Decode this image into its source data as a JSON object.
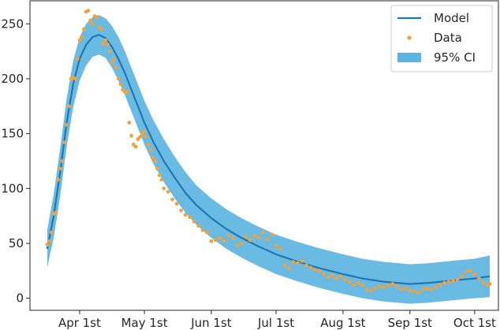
{
  "chart_data": {
    "type": "line",
    "title": "",
    "xlabel": "",
    "ylabel": "",
    "x_unit": "date",
    "xlim": [
      "2020-03-09",
      "2020-10-12"
    ],
    "ylim": [
      -11,
      271
    ],
    "grid": false,
    "legend_placement": "top-right",
    "x_ticks": [
      {
        "value": "2020-04-01",
        "label": "Apr 1st"
      },
      {
        "value": "2020-05-01",
        "label": "May 1st"
      },
      {
        "value": "2020-06-01",
        "label": "Jun 1st"
      },
      {
        "value": "2020-07-01",
        "label": "Jul 1st"
      },
      {
        "value": "2020-08-01",
        "label": "Aug 1st"
      },
      {
        "value": "2020-09-01",
        "label": "Sep 1st"
      },
      {
        "value": "2020-10-01",
        "label": "Oct 1st"
      }
    ],
    "y_ticks": [
      0,
      50,
      100,
      150,
      200,
      250
    ],
    "legend": [
      {
        "label": "Model",
        "kind": "line",
        "color": "#1f77b4"
      },
      {
        "label": "Data",
        "kind": "marker",
        "color": "#f0a23e"
      },
      {
        "label": "95% CI",
        "kind": "patch",
        "color": "#5ab4e0"
      }
    ],
    "series": [
      {
        "name": "Model",
        "kind": "line",
        "color": "#1f77b4",
        "points": [
          [
            "2020-03-17",
            45
          ],
          [
            "2020-03-20",
            75
          ],
          [
            "2020-03-23",
            115
          ],
          [
            "2020-03-26",
            160
          ],
          [
            "2020-03-29",
            195
          ],
          [
            "2020-04-01",
            218
          ],
          [
            "2020-04-04",
            231
          ],
          [
            "2020-04-07",
            238
          ],
          [
            "2020-04-10",
            240
          ],
          [
            "2020-04-13",
            237
          ],
          [
            "2020-04-16",
            229
          ],
          [
            "2020-04-19",
            218
          ],
          [
            "2020-04-22",
            205
          ],
          [
            "2020-04-25",
            190
          ],
          [
            "2020-04-28",
            175
          ],
          [
            "2020-05-01",
            160
          ],
          [
            "2020-05-05",
            143
          ],
          [
            "2020-05-10",
            125
          ],
          [
            "2020-05-15",
            110
          ],
          [
            "2020-05-20",
            96
          ],
          [
            "2020-05-25",
            85
          ],
          [
            "2020-06-01",
            73
          ],
          [
            "2020-06-08",
            63
          ],
          [
            "2020-06-15",
            55
          ],
          [
            "2020-06-22",
            48
          ],
          [
            "2020-07-01",
            40
          ],
          [
            "2020-07-10",
            34
          ],
          [
            "2020-07-20",
            28
          ],
          [
            "2020-08-01",
            22
          ],
          [
            "2020-08-10",
            18
          ],
          [
            "2020-08-20",
            15
          ],
          [
            "2020-09-01",
            13
          ],
          [
            "2020-09-10",
            14
          ],
          [
            "2020-09-20",
            16
          ],
          [
            "2020-10-01",
            18
          ],
          [
            "2020-10-08",
            20
          ]
        ]
      },
      {
        "name": "95% CI",
        "kind": "band",
        "color": "#5ab4e0",
        "x": [
          "2020-03-17",
          "2020-03-20",
          "2020-03-23",
          "2020-03-26",
          "2020-03-29",
          "2020-04-01",
          "2020-04-04",
          "2020-04-07",
          "2020-04-10",
          "2020-04-13",
          "2020-04-16",
          "2020-04-19",
          "2020-04-22",
          "2020-04-25",
          "2020-04-28",
          "2020-05-01",
          "2020-05-05",
          "2020-05-10",
          "2020-05-15",
          "2020-05-20",
          "2020-05-25",
          "2020-06-01",
          "2020-06-08",
          "2020-06-15",
          "2020-06-22",
          "2020-07-01",
          "2020-07-10",
          "2020-07-20",
          "2020-08-01",
          "2020-08-10",
          "2020-08-20",
          "2020-09-01",
          "2020-09-10",
          "2020-09-20",
          "2020-10-01",
          "2020-10-08"
        ],
        "lower": [
          28,
          55,
          93,
          138,
          174,
          198,
          212,
          220,
          222,
          219,
          210,
          198,
          185,
          170,
          155,
          140,
          123,
          106,
          91,
          78,
          67,
          55,
          45,
          37,
          30,
          22,
          16,
          10,
          4,
          0,
          -3,
          -5,
          -4,
          -2,
          0,
          1
        ],
        "upper": [
          62,
          95,
          137,
          182,
          216,
          238,
          250,
          256,
          258,
          255,
          248,
          238,
          225,
          210,
          195,
          180,
          163,
          145,
          129,
          115,
          103,
          91,
          81,
          73,
          66,
          58,
          52,
          46,
          40,
          36,
          33,
          31,
          32,
          34,
          36,
          39
        ]
      },
      {
        "name": "Data",
        "kind": "scatter",
        "color": "#f0a23e",
        "points": [
          [
            "2020-03-17",
            49
          ],
          [
            "2020-03-18",
            52
          ],
          [
            "2020-03-19",
            60
          ],
          [
            "2020-03-20",
            77
          ],
          [
            "2020-03-21",
            78
          ],
          [
            "2020-03-22",
            108
          ],
          [
            "2020-03-23",
            118
          ],
          [
            "2020-03-24",
            125
          ],
          [
            "2020-03-25",
            142
          ],
          [
            "2020-03-26",
            158
          ],
          [
            "2020-03-27",
            175
          ],
          [
            "2020-03-28",
            200
          ],
          [
            "2020-03-29",
            201
          ],
          [
            "2020-03-30",
            200
          ],
          [
            "2020-03-31",
            218
          ],
          [
            "2020-04-01",
            235
          ],
          [
            "2020-04-02",
            238
          ],
          [
            "2020-04-03",
            245
          ],
          [
            "2020-04-04",
            261
          ],
          [
            "2020-04-05",
            262
          ],
          [
            "2020-04-06",
            253
          ],
          [
            "2020-04-07",
            250
          ],
          [
            "2020-04-08",
            257
          ],
          [
            "2020-04-09",
            256
          ],
          [
            "2020-04-10",
            247
          ],
          [
            "2020-04-11",
            245
          ],
          [
            "2020-04-12",
            232
          ],
          [
            "2020-04-13",
            235
          ],
          [
            "2020-04-14",
            231
          ],
          [
            "2020-04-15",
            225
          ],
          [
            "2020-04-16",
            215
          ],
          [
            "2020-04-17",
            218
          ],
          [
            "2020-04-18",
            210
          ],
          [
            "2020-04-19",
            200
          ],
          [
            "2020-04-20",
            195
          ],
          [
            "2020-04-21",
            190
          ],
          [
            "2020-04-22",
            188
          ],
          [
            "2020-04-23",
            188
          ],
          [
            "2020-04-24",
            160
          ],
          [
            "2020-04-25",
            148
          ],
          [
            "2020-04-26",
            140
          ],
          [
            "2020-04-27",
            138
          ],
          [
            "2020-04-28",
            145
          ],
          [
            "2020-04-29",
            147
          ],
          [
            "2020-04-30",
            150
          ],
          [
            "2020-05-01",
            152
          ],
          [
            "2020-05-02",
            147
          ],
          [
            "2020-05-03",
            140
          ],
          [
            "2020-05-04",
            135
          ],
          [
            "2020-05-05",
            128
          ],
          [
            "2020-05-06",
            125
          ],
          [
            "2020-05-07",
            118
          ],
          [
            "2020-05-08",
            112
          ],
          [
            "2020-05-09",
            108
          ],
          [
            "2020-05-10",
            100
          ],
          [
            "2020-05-12",
            97
          ],
          [
            "2020-05-14",
            90
          ],
          [
            "2020-05-16",
            86
          ],
          [
            "2020-05-18",
            80
          ],
          [
            "2020-05-20",
            76
          ],
          [
            "2020-05-22",
            74
          ],
          [
            "2020-05-24",
            70
          ],
          [
            "2020-05-26",
            66
          ],
          [
            "2020-05-28",
            62
          ],
          [
            "2020-05-30",
            60
          ],
          [
            "2020-06-01",
            52
          ],
          [
            "2020-06-03",
            53
          ],
          [
            "2020-06-05",
            55
          ],
          [
            "2020-06-07",
            52
          ],
          [
            "2020-06-09",
            57
          ],
          [
            "2020-06-11",
            55
          ],
          [
            "2020-06-13",
            48
          ],
          [
            "2020-06-15",
            50
          ],
          [
            "2020-06-17",
            56
          ],
          [
            "2020-06-19",
            53
          ],
          [
            "2020-06-21",
            57
          ],
          [
            "2020-06-23",
            55
          ],
          [
            "2020-06-25",
            60
          ],
          [
            "2020-06-27",
            54
          ],
          [
            "2020-06-29",
            58
          ],
          [
            "2020-07-01",
            48
          ],
          [
            "2020-07-03",
            45
          ],
          [
            "2020-07-05",
            30
          ],
          [
            "2020-07-07",
            27
          ],
          [
            "2020-07-09",
            33
          ],
          [
            "2020-07-11",
            32
          ],
          [
            "2020-07-13",
            34
          ],
          [
            "2020-07-15",
            30
          ],
          [
            "2020-07-17",
            28
          ],
          [
            "2020-07-19",
            26
          ],
          [
            "2020-07-21",
            25
          ],
          [
            "2020-07-23",
            22
          ],
          [
            "2020-07-25",
            19
          ],
          [
            "2020-07-27",
            21
          ],
          [
            "2020-07-29",
            18
          ],
          [
            "2020-07-31",
            20
          ],
          [
            "2020-08-02",
            17
          ],
          [
            "2020-08-04",
            15
          ],
          [
            "2020-08-06",
            12
          ],
          [
            "2020-08-08",
            14
          ],
          [
            "2020-08-10",
            12
          ],
          [
            "2020-08-12",
            8
          ],
          [
            "2020-08-14",
            7
          ],
          [
            "2020-08-16",
            9
          ],
          [
            "2020-08-18",
            11
          ],
          [
            "2020-08-20",
            10
          ],
          [
            "2020-08-22",
            12
          ],
          [
            "2020-08-24",
            13
          ],
          [
            "2020-08-26",
            11
          ],
          [
            "2020-08-28",
            8
          ],
          [
            "2020-08-30",
            9
          ],
          [
            "2020-09-01",
            7
          ],
          [
            "2020-09-03",
            6
          ],
          [
            "2020-09-05",
            5
          ],
          [
            "2020-09-07",
            8
          ],
          [
            "2020-09-09",
            9
          ],
          [
            "2020-09-11",
            8
          ],
          [
            "2020-09-13",
            10
          ],
          [
            "2020-09-15",
            12
          ],
          [
            "2020-09-17",
            14
          ],
          [
            "2020-09-19",
            15
          ],
          [
            "2020-09-21",
            16
          ],
          [
            "2020-09-23",
            17
          ],
          [
            "2020-09-25",
            20
          ],
          [
            "2020-09-27",
            24
          ],
          [
            "2020-09-29",
            25
          ],
          [
            "2020-10-01",
            22
          ],
          [
            "2020-10-03",
            18
          ],
          [
            "2020-10-05",
            14
          ],
          [
            "2020-10-07",
            12
          ],
          [
            "2020-10-08",
            13
          ]
        ]
      }
    ]
  }
}
